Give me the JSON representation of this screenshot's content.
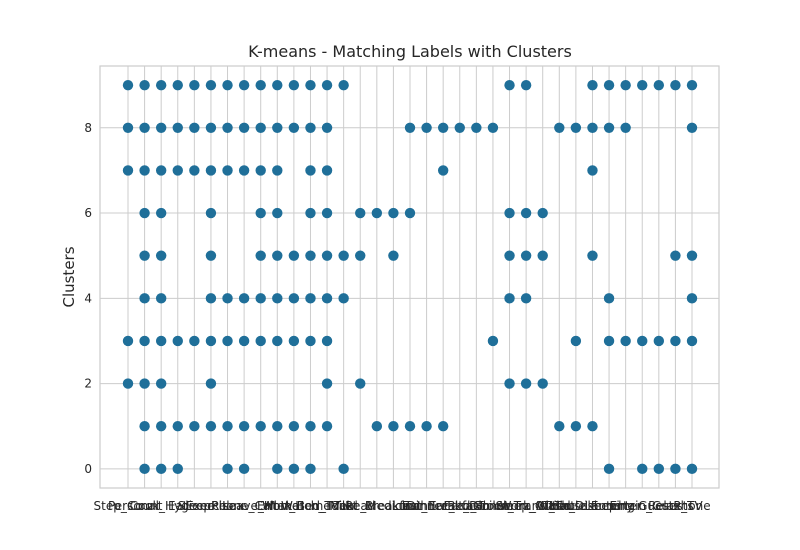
{
  "chart_data": {
    "type": "scatter",
    "title": "K-means - Matching Labels with Clusters",
    "xlabel": "",
    "ylabel": "Clusters",
    "categories": [
      "Step_Count",
      "Cook",
      "Personal_Hygiene",
      "Eat",
      "Sleep",
      "Exercise",
      "Relax",
      "Phone_Call",
      "Leave_Home",
      "Work",
      "Enter_Home",
      "Watch_TV",
      "Bed_Toilet",
      "Meal",
      "Read",
      "Take_Medicine",
      "Breakfast",
      "Lunch",
      "Dinner",
      "Eat_Breakfast",
      "Eat_Lunch",
      "Eat_Dinner",
      "Groom",
      "Bed_Toilet_Transition",
      "Sleep_Out",
      "Work_At_Table",
      "Toilet",
      "Wash_Dishes",
      "Housekeeping",
      "Laundry",
      "Enter",
      "Entertain_Guests",
      "Guests",
      "Relax_TV",
      "Phone"
    ],
    "xtick_labels": [
      "Step_Count",
      "Cook",
      "Personal_Hygiene",
      "Eat",
      "Sleep",
      "Exercise",
      "Relax",
      "Phone_Call",
      "Leave_Home",
      "Work",
      "Enter_Home",
      "Watch_TV",
      "Bed_Toilet",
      "Meal",
      "Read",
      "Take_Medicine",
      "Breakfast",
      "Lunch",
      "Dinner",
      "Eat_Breakfast",
      "Eat_Lunch",
      "Eat_Dinner",
      "Groom",
      "Bed_Toilet_Transition",
      "Sleep_Out",
      "Work_At_Table",
      "Toilet",
      "Wash_Dishes",
      "Housekeeping",
      "Laundry",
      "Enter",
      "Entertain_Guests",
      "Guests",
      "Relax_TV",
      "Phone"
    ],
    "xtick_text": [
      "Step_Count",
      "Cook",
      "Personal_Hygiene",
      "Eat",
      "Sleep",
      "Exercise",
      "Relax",
      "Phone_Call",
      "Leave_Home",
      "Work",
      "Enter_Home",
      "Watch_TV",
      "Bed_Toilet",
      "Meal",
      "Read",
      "Take_Medicine",
      "Breakfast",
      "Lunch",
      "Dinner",
      "Eat_Breakfast",
      "Eat_Lunch",
      "Eat_Dinner",
      "Groom",
      "Bed_Toilet_Transition",
      "Sleep_Out",
      "Work_At_Table",
      "Toilet",
      "Wash_Dishes",
      "Housekeeping",
      "Laundry",
      "Enter",
      "Entertain_Guests",
      "Guests",
      "Relax_TV",
      "Phone"
    ],
    "yticks": [
      0,
      2,
      4,
      6,
      8
    ],
    "ylim": [
      -0.45,
      9.45
    ],
    "grid": true,
    "marker_color": "#1f6f99",
    "points": [
      {
        "x": "Step_Count",
        "y": [
          2,
          3,
          7,
          8,
          9
        ]
      },
      {
        "x": "Cook",
        "y": [
          0,
          1,
          2,
          3,
          4,
          5,
          6,
          7,
          8,
          9
        ]
      },
      {
        "x": "Personal_Hygiene",
        "y": [
          0,
          1,
          2,
          3,
          4,
          5,
          6,
          7,
          8,
          9
        ]
      },
      {
        "x": "Eat",
        "y": [
          0,
          1,
          3,
          7,
          8,
          9
        ]
      },
      {
        "x": "Sleep",
        "y": [
          1,
          3,
          7,
          8,
          9
        ]
      },
      {
        "x": "Exercise",
        "y": [
          1,
          2,
          3,
          4,
          5,
          6,
          7,
          8,
          9
        ]
      },
      {
        "x": "Relax",
        "y": [
          0,
          1,
          3,
          4,
          7,
          8,
          9
        ]
      },
      {
        "x": "Phone_Call",
        "y": [
          0,
          1,
          3,
          4,
          7,
          8,
          9
        ]
      },
      {
        "x": "Leave_Home",
        "y": [
          1,
          3,
          4,
          5,
          6,
          7,
          8,
          9
        ]
      },
      {
        "x": "Work",
        "y": [
          0,
          1,
          3,
          4,
          5,
          6,
          7,
          8,
          9
        ]
      },
      {
        "x": "Enter_Home",
        "y": [
          0,
          1,
          3,
          4,
          5,
          8,
          9
        ]
      },
      {
        "x": "Watch_TV",
        "y": [
          0,
          1,
          3,
          4,
          5,
          6,
          7,
          8,
          9
        ]
      },
      {
        "x": "Bed_Toilet",
        "y": [
          1,
          2,
          3,
          4,
          5,
          6,
          7,
          8,
          9
        ]
      },
      {
        "x": "Meal",
        "y": [
          0,
          4,
          5,
          9
        ]
      },
      {
        "x": "Read",
        "y": [
          2,
          5,
          6
        ]
      },
      {
        "x": "Take_Medicine",
        "y": [
          1,
          6
        ]
      },
      {
        "x": "Breakfast",
        "y": [
          1,
          5,
          6
        ]
      },
      {
        "x": "Lunch",
        "y": [
          1,
          6,
          8
        ]
      },
      {
        "x": "Dinner",
        "y": [
          1,
          8
        ]
      },
      {
        "x": "Eat_Breakfast",
        "y": [
          1,
          7,
          8
        ]
      },
      {
        "x": "Eat_Lunch",
        "y": [
          8
        ]
      },
      {
        "x": "Eat_Dinner",
        "y": [
          8
        ]
      },
      {
        "x": "Groom",
        "y": [
          3,
          8
        ]
      },
      {
        "x": "Bed_Toilet_Transition",
        "y": [
          2,
          4,
          5,
          6,
          9
        ]
      },
      {
        "x": "Sleep_Out",
        "y": [
          2,
          4,
          5,
          6,
          9
        ]
      },
      {
        "x": "Work_At_Table",
        "y": [
          2,
          5,
          6
        ]
      },
      {
        "x": "Toilet",
        "y": [
          1,
          8
        ]
      },
      {
        "x": "Wash_Dishes",
        "y": [
          1,
          3,
          8
        ]
      },
      {
        "x": "Housekeeping",
        "y": [
          1,
          5,
          7,
          8,
          9
        ]
      },
      {
        "x": "Laundry",
        "y": [
          0,
          3,
          4,
          8,
          9
        ]
      },
      {
        "x": "Enter",
        "y": [
          3,
          8,
          9
        ]
      },
      {
        "x": "Entertain_Guests",
        "y": [
          0,
          3,
          9
        ]
      },
      {
        "x": "Guests",
        "y": [
          0,
          3,
          9
        ]
      },
      {
        "x": "Relax_TV",
        "y": [
          0,
          3,
          5,
          9
        ]
      },
      {
        "x": "Phone",
        "y": [
          0,
          3,
          4,
          5,
          8,
          9
        ]
      }
    ]
  }
}
